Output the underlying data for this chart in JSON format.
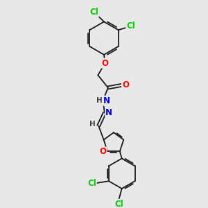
{
  "bg_color": "#e8e8e8",
  "bond_color": "#1a1a1a",
  "bond_width": 1.3,
  "atom_colors": {
    "Cl": "#00cc00",
    "O": "#ff0000",
    "N": "#0000ee",
    "H": "#444444",
    "C": "#1a1a1a"
  },
  "font_size": 8.5,
  "font_size_h": 7.5
}
